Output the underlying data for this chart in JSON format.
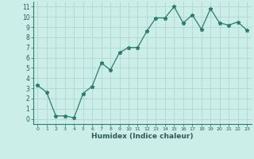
{
  "x": [
    0,
    1,
    2,
    3,
    4,
    5,
    6,
    7,
    8,
    9,
    10,
    11,
    12,
    13,
    14,
    15,
    16,
    17,
    18,
    19,
    20,
    21,
    22,
    23
  ],
  "y": [
    3.3,
    2.6,
    0.3,
    0.3,
    0.1,
    2.5,
    3.2,
    5.5,
    4.8,
    6.5,
    7.0,
    7.0,
    8.6,
    9.9,
    9.9,
    11.0,
    9.4,
    10.2,
    8.8,
    10.8,
    9.4,
    9.2,
    9.5,
    8.7
  ],
  "line_color": "#2d7d6e",
  "marker": "*",
  "marker_size": 3.5,
  "bg_color": "#cceee8",
  "grid_color": "#b0d8cc",
  "xlabel": "Humidex (Indice chaleur)",
  "xlim": [
    -0.5,
    23.5
  ],
  "ylim": [
    -0.5,
    11.5
  ],
  "yticks": [
    0,
    1,
    2,
    3,
    4,
    5,
    6,
    7,
    8,
    9,
    10,
    11
  ],
  "xticks": [
    0,
    1,
    2,
    3,
    4,
    5,
    6,
    7,
    8,
    9,
    10,
    11,
    12,
    13,
    14,
    15,
    16,
    17,
    18,
    19,
    20,
    21,
    22,
    23
  ]
}
